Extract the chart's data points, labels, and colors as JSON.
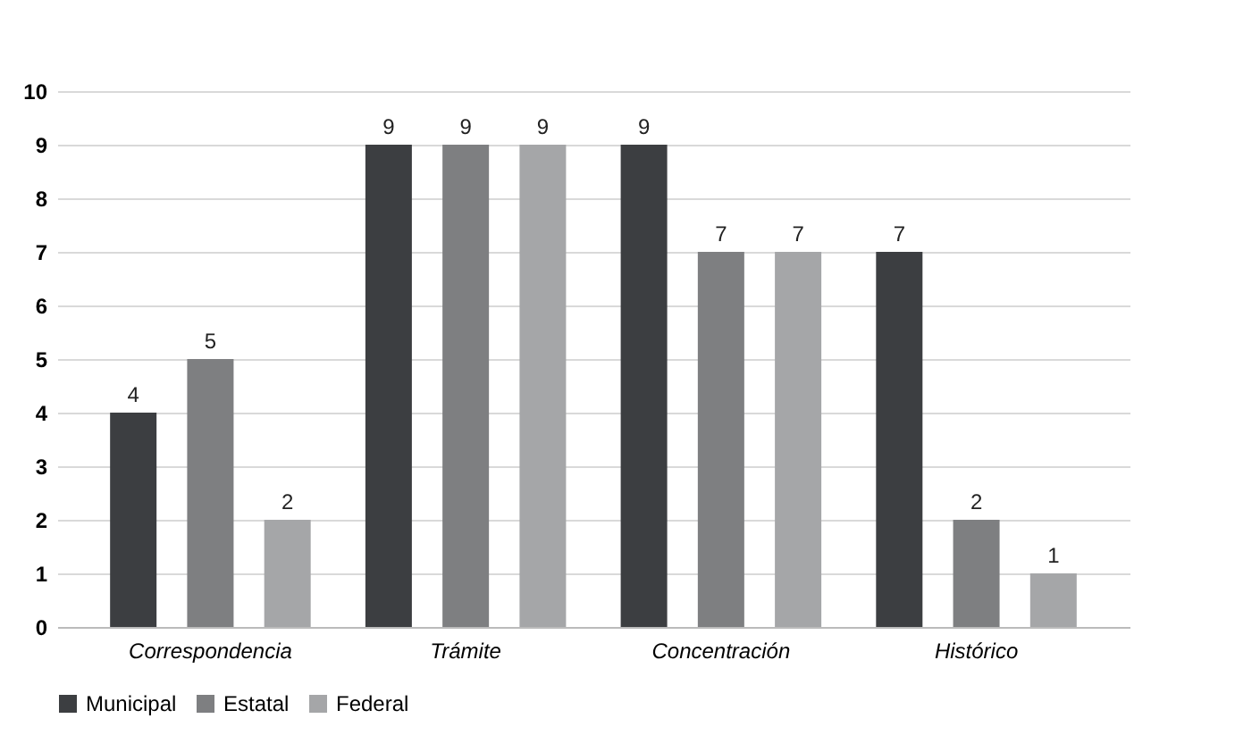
{
  "chart_data": {
    "type": "bar",
    "categories": [
      "Correspondencia",
      "Trámite",
      "Concentración",
      "Histórico"
    ],
    "series": [
      {
        "name": "Municipal",
        "color": "#3c3e41",
        "values": [
          4,
          9,
          9,
          7
        ]
      },
      {
        "name": "Estatal",
        "color": "#7e7f81",
        "values": [
          5,
          9,
          7,
          2
        ]
      },
      {
        "name": "Federal",
        "color": "#a5a6a8",
        "values": [
          2,
          9,
          7,
          1
        ]
      }
    ],
    "ylim": [
      0,
      10
    ],
    "yticks": [
      0,
      1,
      2,
      3,
      4,
      5,
      6,
      7,
      8,
      9,
      10
    ],
    "grid": "y",
    "legend": "bottom",
    "data_labels": true
  }
}
